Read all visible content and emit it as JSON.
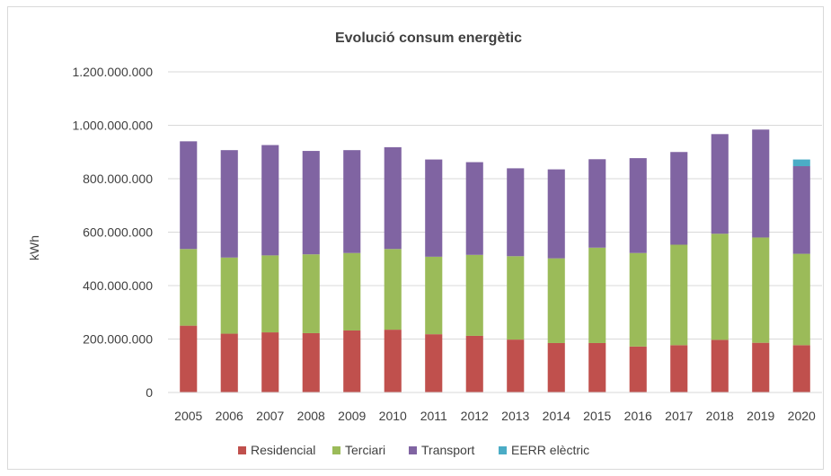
{
  "chart_data": {
    "type": "bar",
    "stacked": true,
    "title": "Evolució consum energètic",
    "xlabel": "",
    "ylabel": "kWh",
    "ylim": [
      0,
      1200000000
    ],
    "yticks": [
      0,
      200000000,
      400000000,
      600000000,
      800000000,
      1000000000,
      1200000000
    ],
    "ytick_labels": [
      "0",
      "200.000.000",
      "400.000.000",
      "600.000.000",
      "800.000.000",
      "1.000.000.000",
      "1.200.000.000"
    ],
    "grid": true,
    "legend_position": "bottom",
    "categories": [
      "2005",
      "2006",
      "2007",
      "2008",
      "2009",
      "2010",
      "2011",
      "2012",
      "2013",
      "2014",
      "2015",
      "2016",
      "2017",
      "2018",
      "2019",
      "2020"
    ],
    "series": [
      {
        "name": "Residencial",
        "color": "#c0504d",
        "values": [
          250000000,
          220000000,
          225000000,
          222000000,
          232000000,
          235000000,
          218000000,
          212000000,
          198000000,
          185000000,
          185000000,
          172000000,
          177000000,
          197000000,
          186000000,
          177000000
        ]
      },
      {
        "name": "Terciari",
        "color": "#9bbb59",
        "values": [
          287000000,
          285000000,
          288000000,
          295000000,
          290000000,
          302000000,
          290000000,
          303000000,
          312000000,
          317000000,
          357000000,
          350000000,
          376000000,
          397000000,
          394000000,
          342000000
        ]
      },
      {
        "name": "Transport",
        "color": "#8064a2",
        "values": [
          403000000,
          402000000,
          413000000,
          387000000,
          385000000,
          381000000,
          364000000,
          347000000,
          329000000,
          333000000,
          331000000,
          355000000,
          347000000,
          373000000,
          404000000,
          328000000
        ]
      },
      {
        "name": "EERR elèctric",
        "color": "#4bacc6",
        "values": [
          0,
          0,
          0,
          0,
          0,
          0,
          0,
          0,
          0,
          0,
          0,
          0,
          0,
          0,
          0,
          25000000
        ]
      }
    ]
  }
}
